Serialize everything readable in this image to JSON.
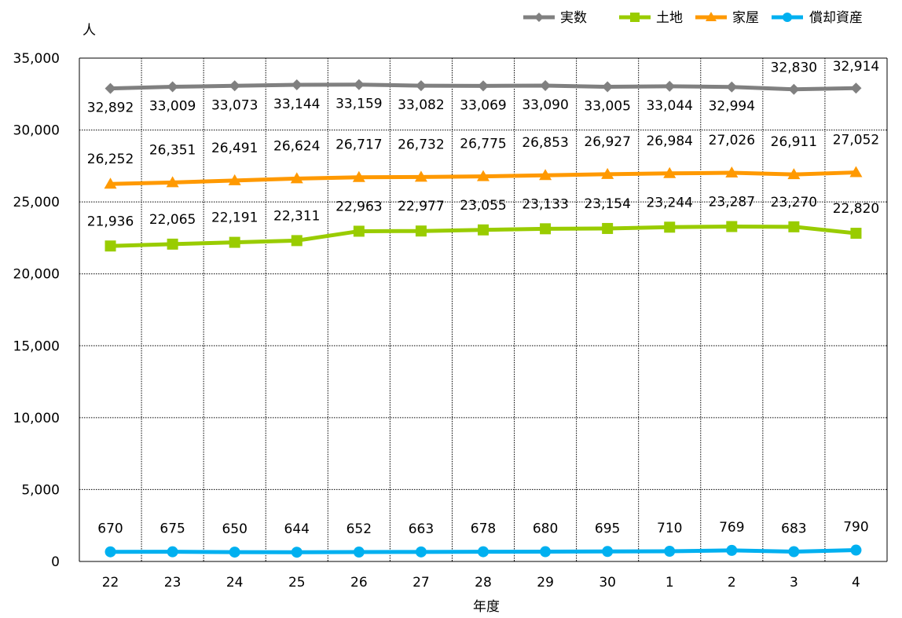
{
  "chart_data": {
    "type": "line",
    "ylabel": "人",
    "xlabel": "年度",
    "categories": [
      "22",
      "23",
      "24",
      "25",
      "26",
      "27",
      "28",
      "29",
      "30",
      "1",
      "2",
      "3",
      "4"
    ],
    "ylim": [
      0,
      35000
    ],
    "yticks": [
      0,
      5000,
      10000,
      15000,
      20000,
      25000,
      30000,
      35000
    ],
    "ytick_labels": [
      "0",
      "5,000",
      "10,000",
      "15,000",
      "20,000",
      "25,000",
      "30,000",
      "35,000"
    ],
    "grid": true,
    "legend_position": "top-right",
    "series": [
      {
        "name": "実数",
        "color": "#808080",
        "marker": "diamond",
        "values": [
          32892,
          33009,
          33073,
          33144,
          33159,
          33082,
          33069,
          33090,
          33005,
          33044,
          32994,
          32830,
          32914
        ]
      },
      {
        "name": "土地",
        "color": "#99CC00",
        "marker": "square",
        "values": [
          21936,
          22065,
          22191,
          22311,
          22963,
          22977,
          23055,
          23133,
          23154,
          23244,
          23287,
          23270,
          22820
        ]
      },
      {
        "name": "家屋",
        "color": "#FF9900",
        "marker": "triangle",
        "values": [
          26252,
          26351,
          26491,
          26624,
          26717,
          26732,
          26775,
          26853,
          26927,
          26984,
          27026,
          26911,
          27052
        ]
      },
      {
        "name": "償却資産",
        "color": "#00B0F0",
        "marker": "circle",
        "values": [
          670,
          675,
          650,
          644,
          652,
          663,
          678,
          680,
          695,
          710,
          769,
          683,
          790
        ]
      }
    ]
  }
}
